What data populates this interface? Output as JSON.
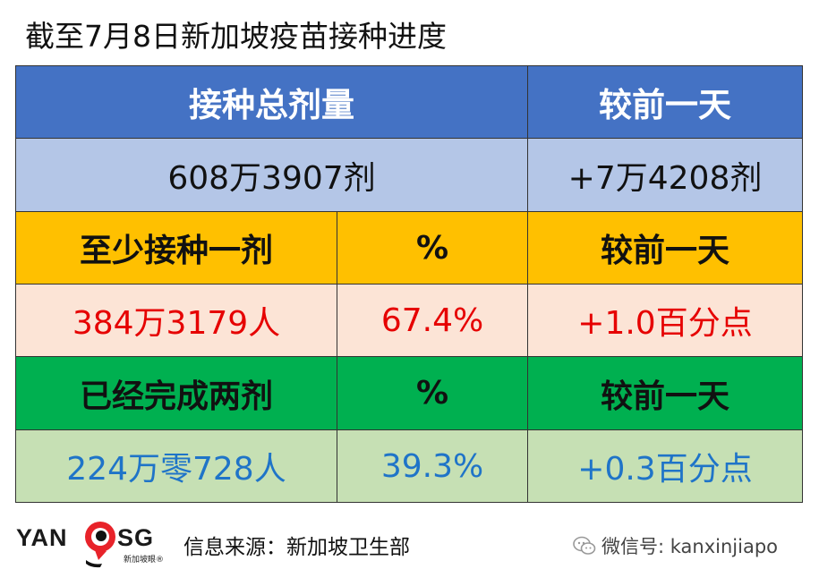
{
  "title": "截至7月8日新加坡疫苗接种进度",
  "table": {
    "header": {
      "total_label": "接种总剂量",
      "change_label": "较前一天"
    },
    "total": {
      "value": "608万3907剂",
      "change": "+7万4208剂"
    },
    "first_dose": {
      "label": "至少接种一剂",
      "pct_label": "%",
      "change_label": "较前一天",
      "value": "384万3179人",
      "pct": "67.4%",
      "change": "+1.0百分点"
    },
    "second_dose": {
      "label": "已经完成两剂",
      "pct_label": "%",
      "change_label": "较前一天",
      "value": "224万零728人",
      "pct": "39.3%",
      "change": "+0.3百分点"
    }
  },
  "footer": {
    "logo": {
      "left": "YAN",
      "right": "SG",
      "sub": "新加坡眼®"
    },
    "source": "信息来源：新加坡卫生部",
    "wechat": "微信号: kanxinjiapo"
  },
  "colors": {
    "header_blue": "#4472c4",
    "total_blue": "#b4c6e7",
    "first_orange": "#ffc000",
    "first_peach": "#fce4d6",
    "second_green": "#00b050",
    "second_lightgreen": "#c6e0b4",
    "red_text": "#e60000",
    "blue_text": "#1f74c8"
  }
}
